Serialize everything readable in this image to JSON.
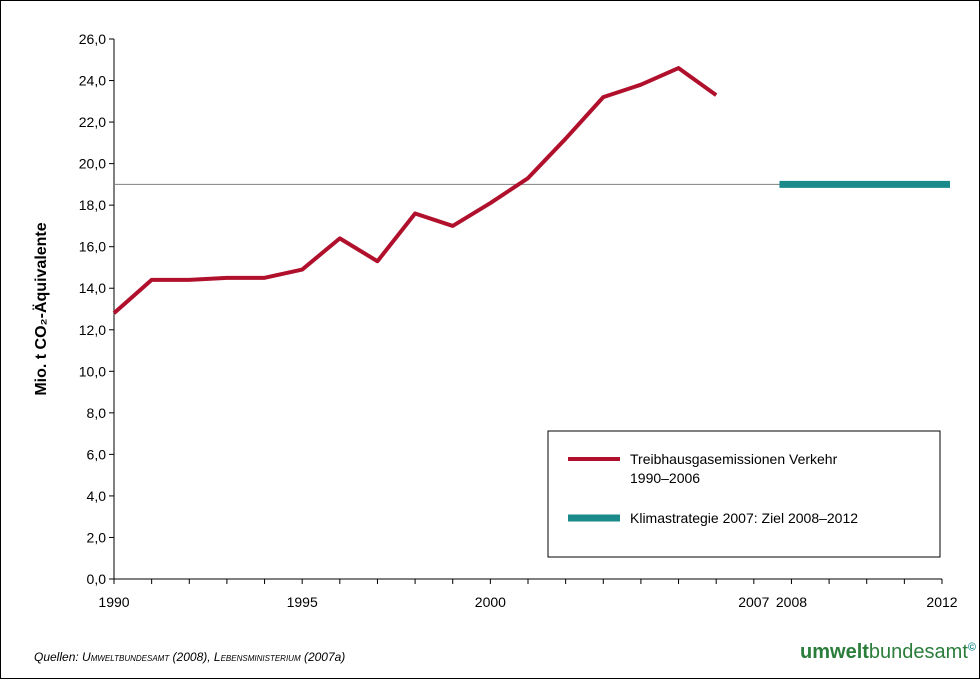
{
  "chart_data": {
    "type": "line",
    "ylabel": "Mio. t CO₂-Äquivalente",
    "ylim": [
      0,
      26
    ],
    "yticks": [
      "0,0",
      "2,0",
      "4,0",
      "6,0",
      "8,0",
      "10,0",
      "12,0",
      "14,0",
      "16,0",
      "18,0",
      "20,0",
      "22,0",
      "24,0",
      "26,0"
    ],
    "xlim": [
      1990,
      2012
    ],
    "xtick_labels": [
      {
        "year": 1990,
        "label": "1990"
      },
      {
        "year": 1995,
        "label": "1995"
      },
      {
        "year": 2000,
        "label": "2000"
      },
      {
        "year": 2007,
        "label": "2007"
      },
      {
        "year": 2008,
        "label": "2008"
      },
      {
        "year": 2012,
        "label": "2012"
      }
    ],
    "target_year_range": [
      2008,
      2012
    ],
    "target_value": 19.0,
    "reference_line_value": 19.0,
    "colors": {
      "emissions": "#b0102c",
      "target": "#1a8a8a",
      "reference": "#808080"
    },
    "series": [
      {
        "name": "Treibhausgasemissionen Verkehr 1990–2006",
        "legend_lines": [
          "Treibhausgasemissionen Verkehr",
          "1990–2006"
        ],
        "x": [
          1990,
          1991,
          1992,
          1993,
          1994,
          1995,
          1996,
          1997,
          1998,
          1999,
          2000,
          2001,
          2002,
          2003,
          2004,
          2005,
          2006
        ],
        "y": [
          12.8,
          14.4,
          14.4,
          14.5,
          14.5,
          14.9,
          16.4,
          15.3,
          17.6,
          17.0,
          18.1,
          19.3,
          21.2,
          23.2,
          23.8,
          24.6,
          23.3
        ]
      },
      {
        "name": "Klimastrategie 2007: Ziel 2008–2012",
        "legend_lines": [
          "Klimastrategie 2007: Ziel 2008–2012"
        ],
        "x": [
          2008,
          2012
        ],
        "y": [
          19.0,
          19.0
        ]
      }
    ],
    "legend_position": "bottom-right",
    "grid": false
  },
  "footer": {
    "source_prefix": "Quellen: ",
    "source_author1": "Umweltbundesamt",
    "source_year1": " (2008), ",
    "source_author2": "Lebensministerium",
    "source_year2": " (2007a)",
    "logo_bold": "umwelt",
    "logo_regular": "bundesamt",
    "logo_mark": "©"
  }
}
